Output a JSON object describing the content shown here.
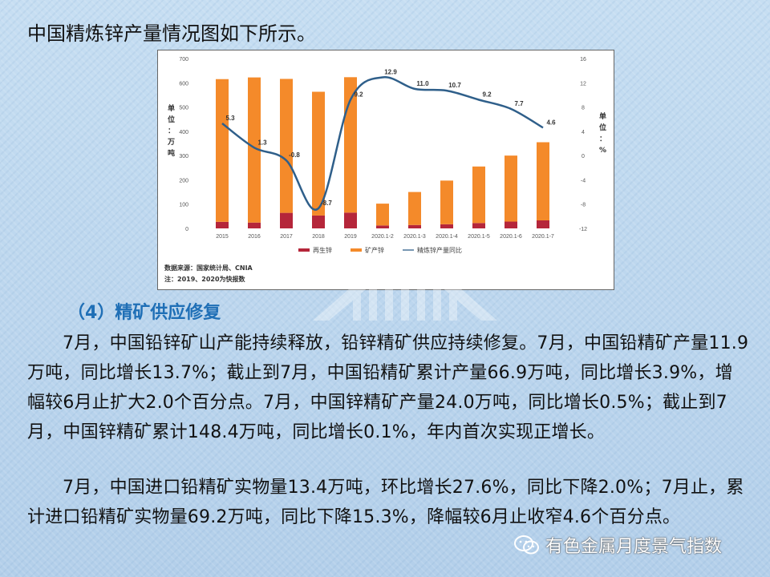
{
  "heading": "中国精炼锌产量情况图如下所示。",
  "chart_data": {
    "type": "bar+line",
    "categories": [
      "2015",
      "2016",
      "2017",
      "2018",
      "2019",
      "2020.1-2",
      "2020.1-3",
      "2020.1-4",
      "2020.1-5",
      "2020.1-6",
      "2020.1-7"
    ],
    "series": [
      {
        "name": "再生锌",
        "axis": "left",
        "values": [
          27,
          24,
          64,
          53,
          65,
          12,
          14,
          17,
          22,
          28,
          33
        ],
        "color": "#b5263a"
      },
      {
        "name": "矿产锌",
        "axis": "left",
        "values": [
          588,
          598,
          552,
          510,
          558,
          90,
          136,
          180,
          233,
          272,
          322
        ],
        "color": "#f48a2a"
      },
      {
        "name": "精炼锌产量同比",
        "axis": "right",
        "values": [
          5.3,
          1.3,
          -0.8,
          -8.7,
          9.2,
          12.9,
          11.0,
          10.7,
          9.2,
          7.7,
          4.6
        ],
        "color": "#2f5f8a"
      }
    ],
    "data_labels": [
      "5.3",
      "1.3",
      "-0.8",
      "-8.7",
      "9.2",
      "12.9",
      "11.0",
      "10.7",
      "9.2",
      "7.7",
      "4.6"
    ],
    "y_left": {
      "min": 0,
      "max": 700,
      "ticks": [
        "0",
        "100",
        "200",
        "300",
        "400",
        "500",
        "600",
        "700"
      ],
      "label": "单位：万吨"
    },
    "y_right": {
      "min": -12,
      "max": 16,
      "ticks": [
        "-12",
        "-8",
        "-4",
        "0",
        "4",
        "8",
        "12",
        "16"
      ],
      "label": "单位：%"
    },
    "legend_position": "bottom",
    "source_line1": "数据来源：国家统计局、CNIA",
    "source_line2": "注：2019、2020为快报数"
  },
  "section_title": "（4）精矿供应修复",
  "paragraph1": "7月，中国铅锌矿山产能持续释放，铅锌精矿供应持续修复。7月，中国铅精矿产量11.9万吨，同比增长13.7%；截止到7月，中国铅精矿累计产量66.9万吨，同比增长3.9%，增幅较6月止扩大2.0个百分点。7月，中国锌精矿产量24.0万吨，同比增长0.5%；截止到7月，中国锌精矿累计148.4万吨，同比增长0.1%，年内首次实现正增长。",
  "paragraph2": "7月，中国进口铅精矿实物量13.4万吨，环比增长27.6%，同比下降2.0%；7月止，累计进口铅精矿实物量69.2万吨，同比下降15.3%，降幅较6月止收窄4.6个百分点。",
  "footer_brand": "有色金属月度景气指数",
  "icons": {
    "footer": "wechat-icon",
    "watermark": "logo-watermark"
  }
}
